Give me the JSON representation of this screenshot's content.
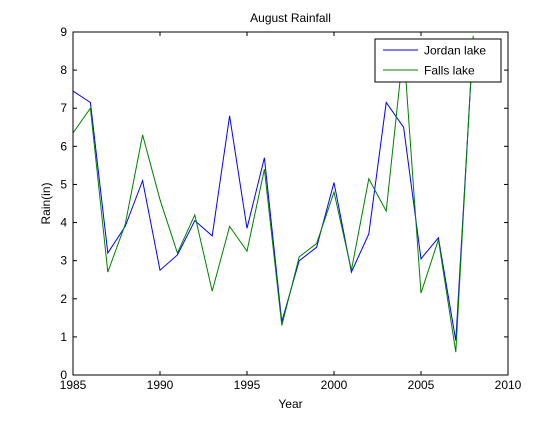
{
  "chart_data": {
    "type": "line",
    "title": "August Rainfall",
    "xlabel": "Year",
    "ylabel": "Rain(in)",
    "xlim": [
      1985,
      2010
    ],
    "ylim": [
      0,
      9
    ],
    "xticks": [
      1985,
      1990,
      1995,
      2000,
      2005,
      2010
    ],
    "yticks": [
      0,
      1,
      2,
      3,
      4,
      5,
      6,
      7,
      8,
      9
    ],
    "grid": false,
    "legend_position": "top-right",
    "x": [
      1985,
      1986,
      1987,
      1988,
      1989,
      1990,
      1991,
      1992,
      1993,
      1994,
      1995,
      1996,
      1997,
      1998,
      1999,
      2000,
      2001,
      2002,
      2003,
      2004,
      2005,
      2006,
      2007,
      2008
    ],
    "series": [
      {
        "name": "Jordan lake",
        "color": "#0000ff",
        "values": [
          7.45,
          7.15,
          3.2,
          3.9,
          5.1,
          2.75,
          3.15,
          4.05,
          3.65,
          6.8,
          3.85,
          5.7,
          1.4,
          3.0,
          3.35,
          5.05,
          2.7,
          3.7,
          7.15,
          6.5,
          3.05,
          3.6,
          0.9,
          8.8
        ]
      },
      {
        "name": "Falls lake",
        "color": "#008000",
        "values": [
          6.35,
          7.0,
          2.7,
          3.95,
          6.3,
          4.6,
          3.2,
          4.2,
          2.2,
          3.9,
          3.25,
          5.4,
          1.3,
          3.1,
          3.45,
          4.8,
          2.75,
          5.15,
          4.3,
          8.6,
          2.15,
          3.55,
          0.6,
          8.9
        ]
      }
    ]
  }
}
